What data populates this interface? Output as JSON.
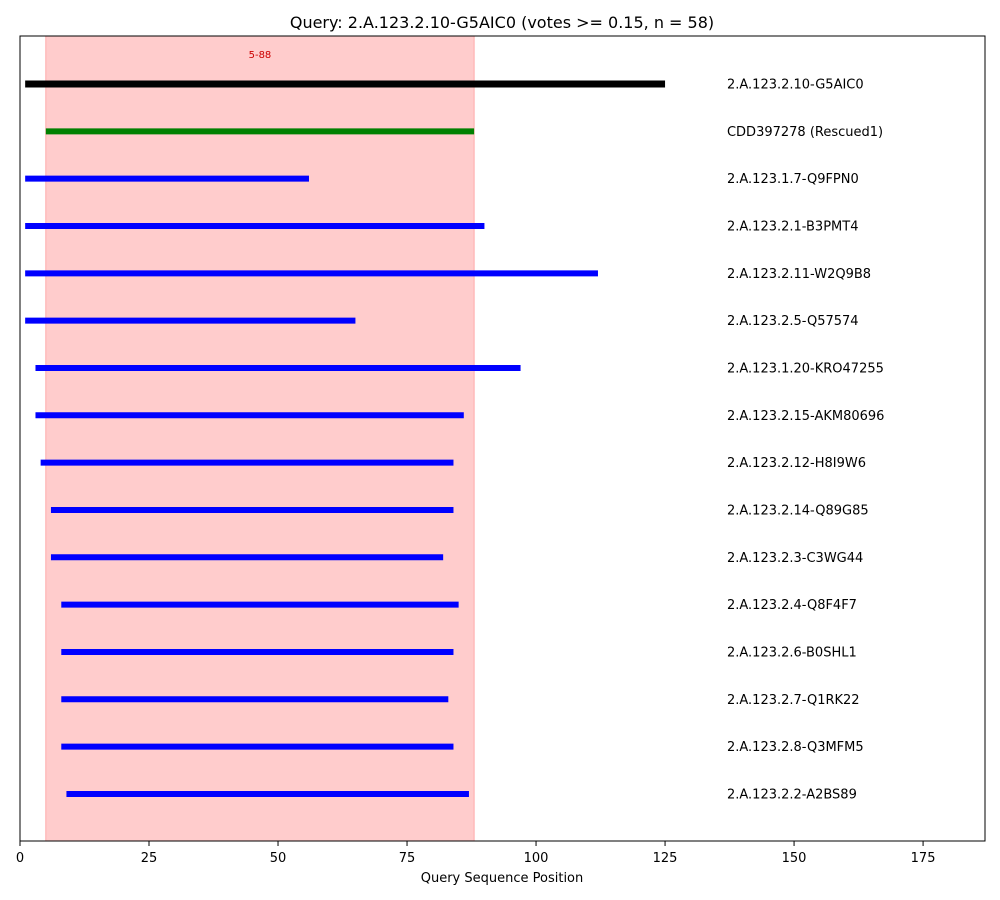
{
  "chart_data": {
    "type": "bar",
    "orientation": "horizontal-ranges",
    "title": "Query: 2.A.123.2.10-G5AIC0 (votes >= 0.15, n = 58)",
    "xlabel": "Query Sequence Position",
    "ylabel": "",
    "xlim": [
      0,
      187
    ],
    "xticks": [
      0,
      25,
      50,
      75,
      100,
      125,
      150,
      175
    ],
    "grid": false,
    "highlight_region": {
      "start": 5,
      "end": 88,
      "label": "5-88",
      "color": "#ffcccc",
      "label_color": "#cc0000"
    },
    "label_x": 137,
    "rows": [
      {
        "label": "2.A.123.2.10-G5AIC0",
        "start": 1,
        "end": 125,
        "color": "#000000"
      },
      {
        "label": "CDD397278 (Rescued1)",
        "start": 5,
        "end": 88,
        "color": "#008000"
      },
      {
        "label": "2.A.123.1.7-Q9FPN0",
        "start": 1,
        "end": 56,
        "color": "#0000ff"
      },
      {
        "label": "2.A.123.2.1-B3PMT4",
        "start": 1,
        "end": 90,
        "color": "#0000ff"
      },
      {
        "label": "2.A.123.2.11-W2Q9B8",
        "start": 1,
        "end": 112,
        "color": "#0000ff"
      },
      {
        "label": "2.A.123.2.5-Q57574",
        "start": 1,
        "end": 65,
        "color": "#0000ff"
      },
      {
        "label": "2.A.123.1.20-KRO47255",
        "start": 3,
        "end": 97,
        "color": "#0000ff"
      },
      {
        "label": "2.A.123.2.15-AKM80696",
        "start": 3,
        "end": 86,
        "color": "#0000ff"
      },
      {
        "label": "2.A.123.2.12-H8I9W6",
        "start": 4,
        "end": 84,
        "color": "#0000ff"
      },
      {
        "label": "2.A.123.2.14-Q89G85",
        "start": 6,
        "end": 84,
        "color": "#0000ff"
      },
      {
        "label": "2.A.123.2.3-C3WG44",
        "start": 6,
        "end": 82,
        "color": "#0000ff"
      },
      {
        "label": "2.A.123.2.4-Q8F4F7",
        "start": 8,
        "end": 85,
        "color": "#0000ff"
      },
      {
        "label": "2.A.123.2.6-B0SHL1",
        "start": 8,
        "end": 84,
        "color": "#0000ff"
      },
      {
        "label": "2.A.123.2.7-Q1RK22",
        "start": 8,
        "end": 83,
        "color": "#0000ff"
      },
      {
        "label": "2.A.123.2.8-Q3MFM5",
        "start": 8,
        "end": 84,
        "color": "#0000ff"
      },
      {
        "label": "2.A.123.2.2-A2BS89",
        "start": 9,
        "end": 87,
        "color": "#0000ff"
      }
    ]
  }
}
